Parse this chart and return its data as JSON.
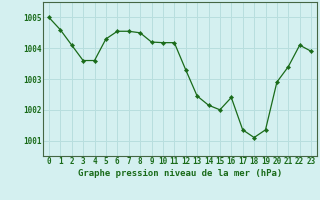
{
  "x": [
    0,
    1,
    2,
    3,
    4,
    5,
    6,
    7,
    8,
    9,
    10,
    11,
    12,
    13,
    14,
    15,
    16,
    17,
    18,
    19,
    20,
    21,
    22,
    23
  ],
  "y": [
    1005.0,
    1004.6,
    1004.1,
    1003.6,
    1003.6,
    1004.3,
    1004.55,
    1004.55,
    1004.5,
    1004.2,
    1004.18,
    1004.18,
    1003.3,
    1002.45,
    1002.15,
    1002.0,
    1002.4,
    1001.35,
    1001.1,
    1001.35,
    1002.9,
    1003.4,
    1004.1,
    1003.9
  ],
  "line_color": "#1a6b1a",
  "marker_color": "#1a6b1a",
  "bg_color": "#d4f0f0",
  "grid_color": "#b8dede",
  "title": "Graphe pression niveau de la mer (hPa)",
  "ylim": [
    1000.5,
    1005.5
  ],
  "yticks": [
    1001,
    1002,
    1003,
    1004,
    1005
  ],
  "ytick_labels": [
    "1001",
    "1002",
    "1003",
    "1004",
    "1005"
  ],
  "xticks": [
    0,
    1,
    2,
    3,
    4,
    5,
    6,
    7,
    8,
    9,
    10,
    11,
    12,
    13,
    14,
    15,
    16,
    17,
    18,
    19,
    20,
    21,
    22,
    23
  ],
  "title_fontsize": 6.5,
  "tick_fontsize": 5.5,
  "figsize": [
    3.2,
    2.0
  ],
  "dpi": 100
}
